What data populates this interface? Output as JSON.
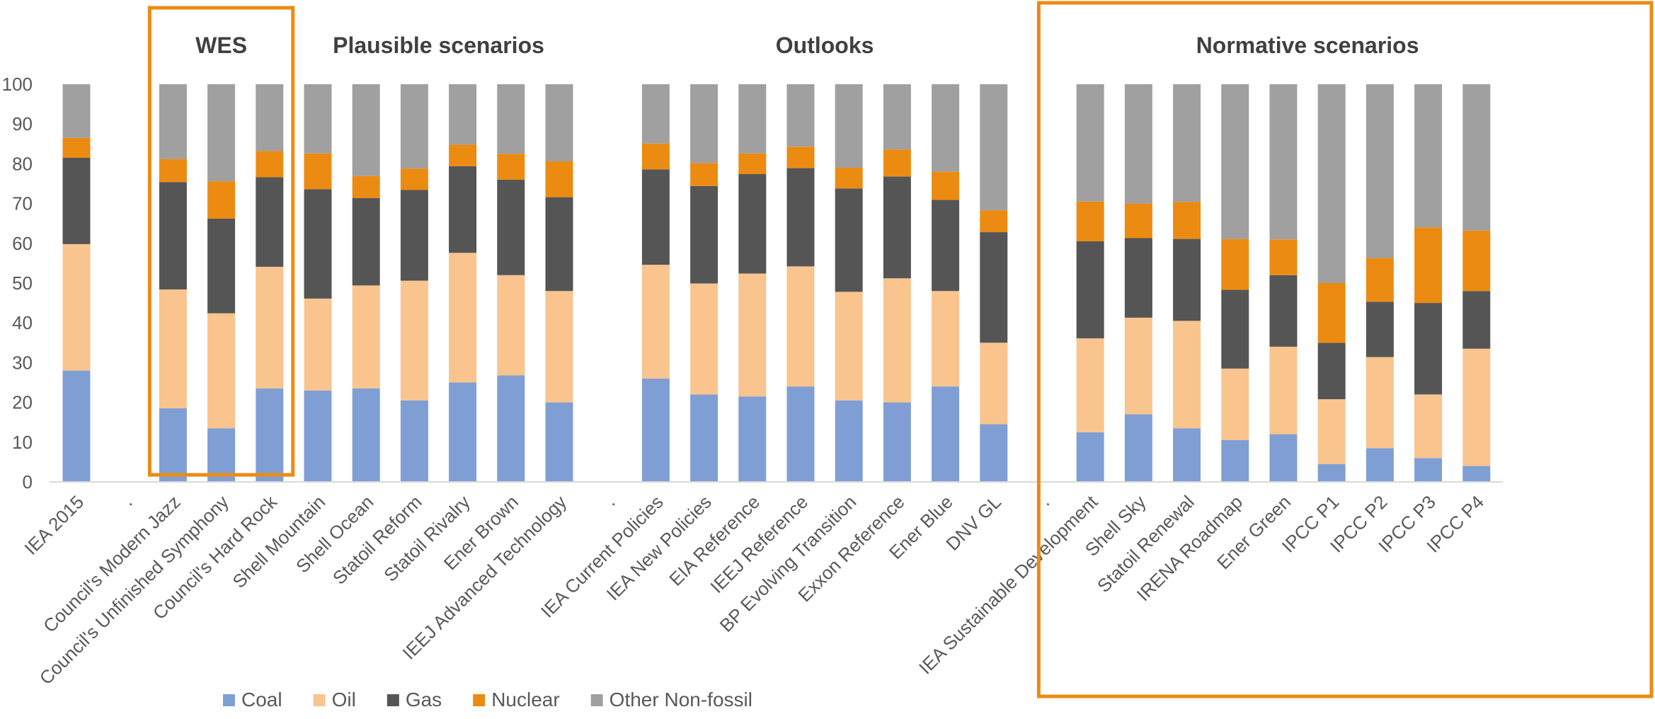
{
  "chart_data": {
    "type": "bar",
    "stacked": true,
    "title": "",
    "xlabel": "",
    "ylabel": "",
    "ylim": [
      0,
      100
    ],
    "yticks": [
      0,
      10,
      20,
      30,
      40,
      50,
      60,
      70,
      80,
      90,
      100
    ],
    "grid": false,
    "legend_position": "bottom-left",
    "categories": [
      "IEA 2015",
      ".",
      "Council's Modern Jazz",
      "Council's Unfinished Symphony",
      "Council's Hard Rock",
      "Shell Mountain",
      "Shell Ocean",
      "Statoil Reform",
      "Statoil Rivalry",
      "Ener Brown",
      "IEEJ Advanced Technology",
      ".",
      "IEA Current Policies",
      "IEA New Policies",
      "EIA Reference",
      "IEEJ Reference",
      "BP Evolving Transition",
      "Exxon Reference",
      "Ener Blue",
      "DNV GL",
      ".",
      "IEA Sustainable Development",
      "Shell Sky",
      "Statoil Renewal",
      "IRENA Roadmap",
      "Ener Green",
      "IPCC P1",
      "IPCC P2",
      "IPCC P3",
      "IPCC P4"
    ],
    "series": [
      {
        "name": "Coal",
        "color": "#7F9FD4",
        "values": [
          28,
          0,
          18.5,
          13.5,
          23.5,
          23,
          23.5,
          20.5,
          25,
          26.8,
          20,
          0,
          26,
          22,
          21.5,
          24,
          20.5,
          20,
          24,
          14.5,
          0,
          12.5,
          17,
          13.5,
          10.5,
          12,
          4.5,
          8.5,
          6,
          4
        ]
      },
      {
        "name": "Oil",
        "color": "#F9C48E",
        "values": [
          31.8,
          0,
          29.9,
          28.9,
          30.6,
          23.1,
          25.9,
          30.1,
          32.6,
          25.2,
          28,
          0,
          28.6,
          27.9,
          30.9,
          30.2,
          27.3,
          31.2,
          24,
          20.5,
          0,
          23.6,
          24.3,
          27,
          18,
          22,
          16.3,
          22.9,
          16,
          29.5
        ]
      },
      {
        "name": "Gas",
        "color": "#555555",
        "values": [
          21.7,
          0,
          27,
          23.8,
          22.5,
          27.5,
          22,
          22.8,
          21.8,
          24,
          23.6,
          0,
          24,
          24.5,
          25,
          24.7,
          26,
          25.6,
          22.9,
          27.8,
          0,
          24.4,
          20,
          20.6,
          19.8,
          18,
          14.2,
          13.9,
          23,
          14.5
        ]
      },
      {
        "name": "Nuclear",
        "color": "#EC8B12",
        "values": [
          5,
          0,
          5.8,
          9.4,
          6.6,
          9,
          5.5,
          5.4,
          5.4,
          6.5,
          9,
          0,
          6.5,
          5.8,
          5.2,
          5.4,
          5.2,
          6.8,
          7.1,
          5.5,
          0,
          10,
          8.7,
          9.3,
          12.8,
          9,
          15,
          11,
          19,
          15.2
        ]
      },
      {
        "name": "Other Non-fossil",
        "color": "#A0A0A0",
        "values": [
          13.5,
          0,
          18.8,
          24.4,
          16.8,
          17.4,
          23.1,
          21.2,
          15.2,
          17.5,
          19.4,
          0,
          14.9,
          19.8,
          17.4,
          15.7,
          21,
          16.4,
          22,
          31.7,
          0,
          29.5,
          30,
          29.6,
          38.9,
          39,
          50,
          43.7,
          36,
          36.8
        ]
      }
    ],
    "groups": [
      {
        "title": "WES",
        "from": 2,
        "to": 4,
        "boxed": true
      },
      {
        "title": "Plausible scenarios",
        "from": 5,
        "to": 10,
        "boxed": false
      },
      {
        "title": "Outlooks",
        "from": 12,
        "to": 19,
        "boxed": false
      },
      {
        "title": "Normative scenarios",
        "from": 22,
        "to": 29,
        "boxed": true
      }
    ],
    "box_color": "#EC8B12"
  }
}
